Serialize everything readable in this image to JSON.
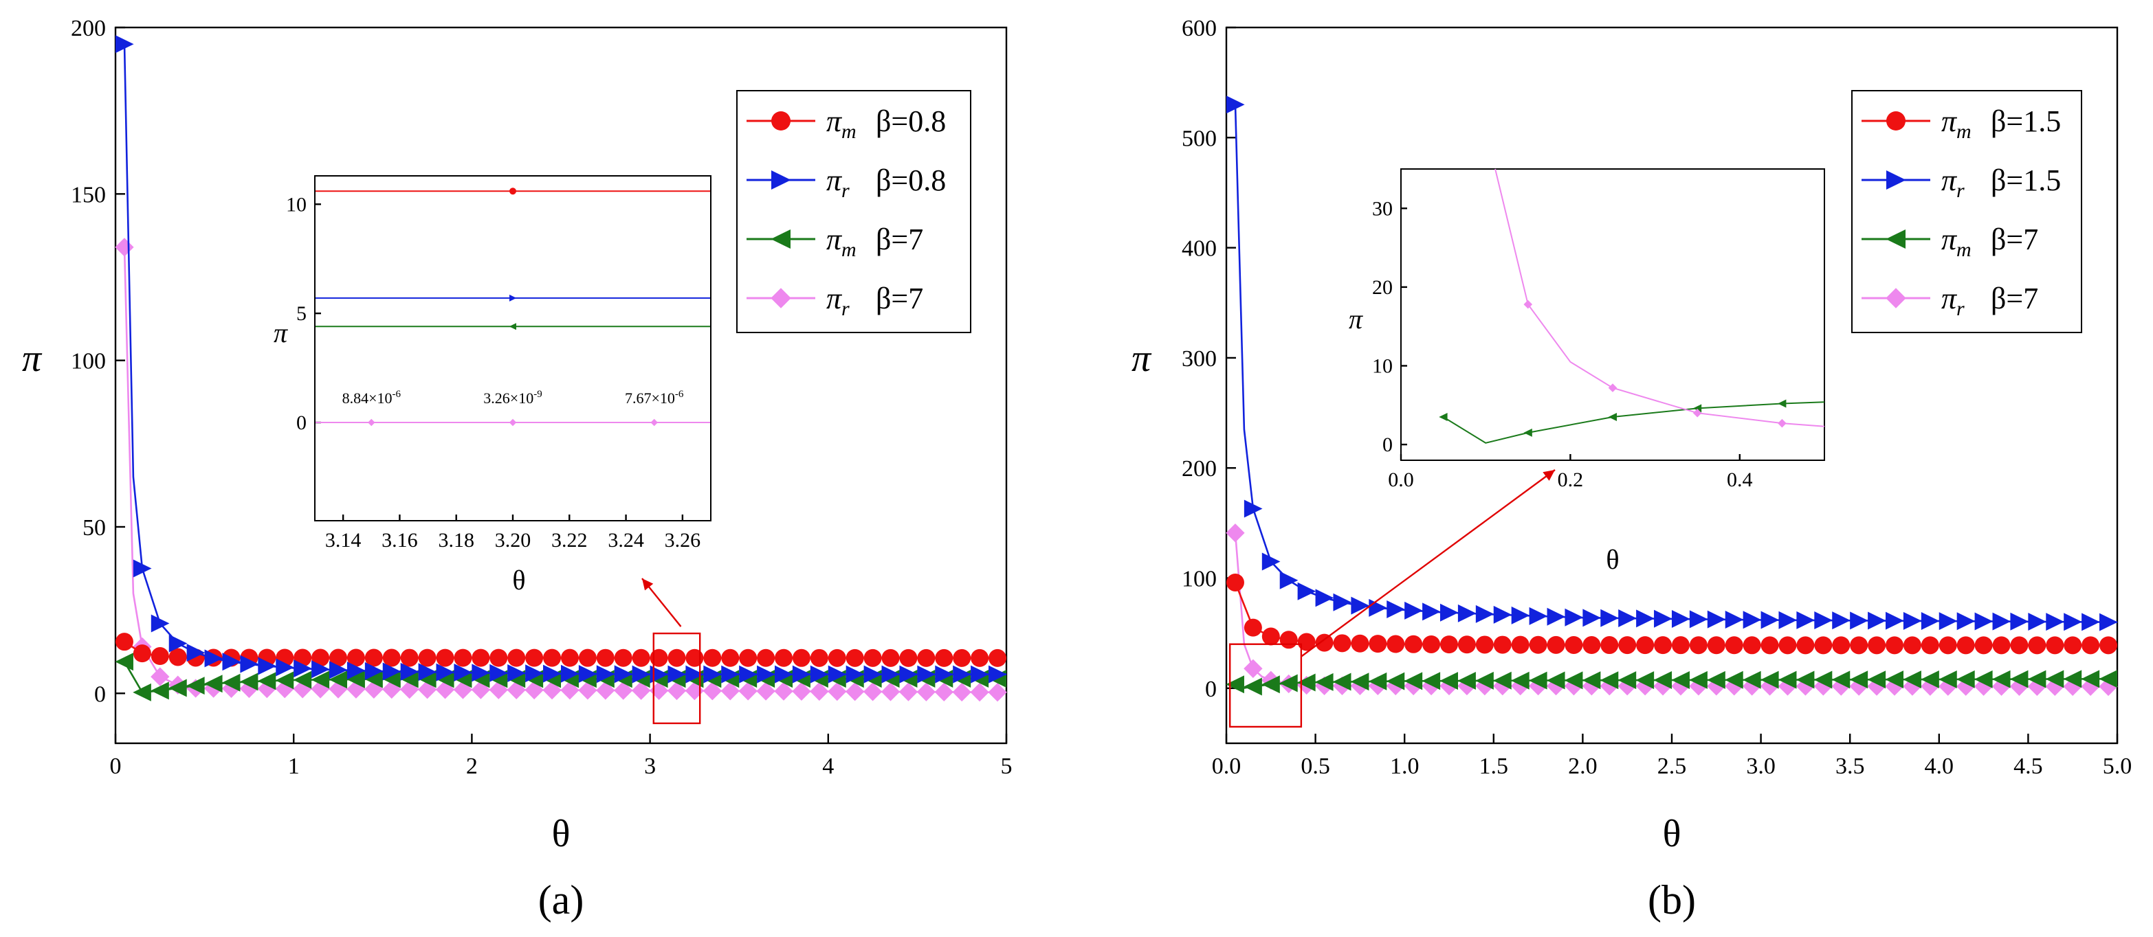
{
  "colors": {
    "pi_m_beta1": "#ee1111",
    "pi_r_beta1": "#1122dd",
    "pi_m_beta7": "#1a7a1a",
    "pi_r_beta7": "#ee88ee",
    "zoom": "#e00000"
  },
  "chart_data": [
    {
      "id": "a",
      "panel_label": "(a)",
      "type": "line",
      "xlabel": "θ",
      "ylabel": "π",
      "xlim": [
        0,
        5
      ],
      "ylim": [
        -15,
        200
      ],
      "xticks": [
        0,
        1,
        2,
        3,
        4,
        5
      ],
      "xtick_labels": [
        "0",
        "1",
        "2",
        "3",
        "4",
        "5"
      ],
      "yticks": [
        0,
        50,
        100,
        150,
        200
      ],
      "ytick_labels": [
        "0",
        "50",
        "100",
        "150",
        "200"
      ],
      "legend_position": "top-right",
      "series": [
        {
          "key": "pi_m_beta1",
          "name": "πm β=0.8",
          "sym": "π",
          "sub": "m",
          "beta": "β=0.8",
          "marker": "circle",
          "x": [
            0.05,
            0.15,
            0.25,
            0.35,
            0.45
          ],
          "y": [
            15.5,
            12.0,
            11.2,
            10.9,
            10.7
          ],
          "tail": 10.6
        },
        {
          "key": "pi_r_beta1",
          "name": "πr β=0.8",
          "sym": "π",
          "sub": "r",
          "beta": "β=0.8",
          "marker": "triangle-right",
          "x": [
            0.05,
            0.1,
            0.15,
            0.25,
            0.35,
            0.45,
            0.55,
            0.65,
            0.75,
            0.85,
            1.0,
            1.2,
            1.5,
            2.0,
            2.5,
            3.0
          ],
          "y": [
            195,
            65,
            37.5,
            21,
            15,
            12.2,
            10.5,
            9.5,
            8.8,
            8.2,
            7.6,
            7.1,
            6.6,
            6.2,
            5.9,
            5.7
          ],
          "tail": 5.7
        },
        {
          "key": "pi_m_beta7",
          "name": "πm β=7",
          "sym": "π",
          "sub": "m",
          "beta": "β=7",
          "marker": "triangle-left",
          "x": [
            0.05,
            0.15,
            0.25,
            0.35,
            0.45,
            0.55,
            0.75,
            1.0,
            1.5
          ],
          "y": [
            9.5,
            0.3,
            0.8,
            1.6,
            2.3,
            2.9,
            3.5,
            4.0,
            4.3
          ],
          "tail": 4.4
        },
        {
          "key": "pi_r_beta7",
          "name": "πr β=7",
          "sym": "π",
          "sub": "r",
          "beta": "β=7",
          "marker": "diamond",
          "x": [
            0.05,
            0.1,
            0.15,
            0.25,
            0.35,
            0.45
          ],
          "y": [
            134,
            30,
            14,
            5,
            2.5,
            1.5
          ],
          "tail": 0.3
        }
      ],
      "inset": {
        "xlabel": "θ",
        "ylabel": "π",
        "xlim": [
          3.13,
          3.27
        ],
        "ylim": [
          -4.5,
          11.3
        ],
        "xticks": [
          3.14,
          3.16,
          3.18,
          3.2,
          3.22,
          3.24,
          3.26
        ],
        "xtick_labels": [
          "3.14",
          "3.16",
          "3.18",
          "3.20",
          "3.22",
          "3.24",
          "3.26"
        ],
        "yticks": [
          0,
          5,
          10
        ],
        "ytick_labels": [
          "0",
          "5",
          "10"
        ],
        "series": [
          {
            "key": "pi_m_beta1",
            "marker": "circle",
            "level": 10.6,
            "points": [
              3.2
            ]
          },
          {
            "key": "pi_r_beta1",
            "marker": "triangle-right",
            "level": 5.7,
            "points": [
              3.2
            ]
          },
          {
            "key": "pi_m_beta7",
            "marker": "triangle-left",
            "level": 4.4,
            "points": [
              3.2
            ]
          },
          {
            "key": "pi_r_beta7",
            "marker": "diamond",
            "level": 0,
            "points": [
              3.15,
              3.2,
              3.25
            ]
          }
        ],
        "annotations": [
          {
            "x": 3.15,
            "text": "8.84×10-6",
            "mantissa": "8.84×10",
            "exp": "-6"
          },
          {
            "x": 3.2,
            "text": "3.26×10-9",
            "mantissa": "3.26×10",
            "exp": "-9"
          },
          {
            "x": 3.25,
            "text": "7.67×10-6",
            "mantissa": "7.67×10",
            "exp": "-6"
          }
        ]
      },
      "zoom_box": {
        "x": [
          3.02,
          3.28
        ],
        "y": [
          -9,
          18
        ]
      }
    },
    {
      "id": "b",
      "panel_label": "(b)",
      "type": "line",
      "xlabel": "θ",
      "ylabel": "π",
      "xlim": [
        0,
        5
      ],
      "ylim": [
        -50,
        600
      ],
      "xticks": [
        0,
        0.5,
        1,
        1.5,
        2,
        2.5,
        3,
        3.5,
        4,
        4.5,
        5
      ],
      "xtick_labels": [
        "0.0",
        "0.5",
        "1.0",
        "1.5",
        "2.0",
        "2.5",
        "3.0",
        "3.5",
        "4.0",
        "4.5",
        "5.0"
      ],
      "yticks": [
        0,
        100,
        200,
        300,
        400,
        500,
        600
      ],
      "ytick_labels": [
        "0",
        "100",
        "200",
        "300",
        "400",
        "500",
        "600"
      ],
      "legend_position": "top-right",
      "series": [
        {
          "key": "pi_m_beta1",
          "name": "πm β=1.5",
          "sym": "π",
          "sub": "m",
          "beta": "β=1.5",
          "marker": "circle",
          "x": [
            0.05,
            0.15,
            0.25,
            0.35,
            0.45,
            0.6,
            0.8,
            1.0,
            1.5,
            2.0,
            3.0
          ],
          "y": [
            96,
            55,
            47,
            44,
            42,
            41,
            40.5,
            40,
            39.5,
            39.2,
            39
          ],
          "tail": 39
        },
        {
          "key": "pi_r_beta1",
          "name": "πr β=1.5",
          "sym": "π",
          "sub": "r",
          "beta": "β=1.5",
          "marker": "triangle-right",
          "x": [
            0.05,
            0.1,
            0.15,
            0.25,
            0.35,
            0.45,
            0.55,
            0.65,
            0.75,
            0.85,
            1.0,
            1.2,
            1.5,
            2.0,
            2.5,
            3.0,
            3.5,
            4.0,
            4.5,
            5.0
          ],
          "y": [
            530,
            235,
            163,
            115,
            98,
            88,
            82,
            78,
            75,
            73,
            71,
            69,
            67,
            64,
            63,
            62,
            61.5,
            61,
            60.5,
            60
          ],
          "tail": 60
        },
        {
          "key": "pi_m_beta7",
          "name": "πm β=7",
          "sym": "π",
          "sub": "m",
          "beta": "β=7",
          "marker": "triangle-left",
          "x": [
            0.05,
            0.1,
            0.15,
            0.25,
            0.35,
            0.45,
            0.55,
            1.0,
            2.0,
            3.0,
            4.0,
            5.0
          ],
          "y": [
            3.5,
            0.2,
            1.5,
            3.5,
            4.6,
            5.2,
            5.6,
            6.5,
            7.2,
            7.6,
            8,
            8.5
          ],
          "tail": 8.5
        },
        {
          "key": "pi_r_beta7",
          "name": "πr β=7",
          "sym": "π",
          "sub": "r",
          "beta": "β=7",
          "marker": "diamond",
          "x": [
            0.05,
            0.1,
            0.15,
            0.2,
            0.25,
            0.35,
            0.45,
            0.55
          ],
          "y": [
            141,
            40,
            17.8,
            10.5,
            7.2,
            4.0,
            2.7,
            2.2
          ],
          "tail": 1.5
        }
      ],
      "inset": {
        "xlabel": "θ",
        "ylabel": "π",
        "xlim": [
          0,
          0.5
        ],
        "ylim": [
          -2,
          35
        ],
        "xticks": [
          0,
          0.2,
          0.4
        ],
        "xtick_labels": [
          "0.0",
          "0.2",
          "0.4"
        ],
        "yticks": [
          0,
          10,
          20,
          30
        ],
        "ytick_labels": [
          "0",
          "10",
          "20",
          "30"
        ],
        "series": [
          {
            "key": "pi_m_beta7",
            "marker": "triangle-left",
            "x": [
              0.05,
              0.1,
              0.15,
              0.25,
              0.35,
              0.45,
              0.5
            ],
            "y": [
              3.5,
              0.2,
              1.5,
              3.5,
              4.6,
              5.2,
              5.4
            ],
            "marked": [
              0.05,
              0.15,
              0.25,
              0.35,
              0.45
            ]
          },
          {
            "key": "pi_r_beta7",
            "marker": "diamond",
            "x": [
              0.1,
              0.15,
              0.2,
              0.25,
              0.35,
              0.45,
              0.5
            ],
            "y": [
              40,
              17.8,
              10.5,
              7.2,
              4.0,
              2.7,
              2.3
            ],
            "marked": [
              0.15,
              0.25,
              0.35,
              0.45
            ]
          }
        ]
      },
      "zoom_box": {
        "x": [
          0.02,
          0.42
        ],
        "y": [
          -35,
          40
        ]
      }
    }
  ]
}
